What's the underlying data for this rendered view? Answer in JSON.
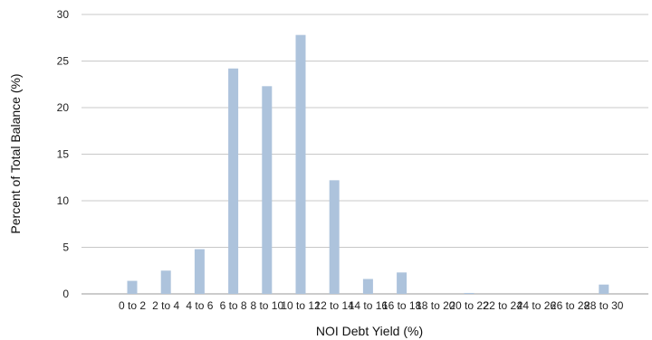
{
  "chart_data": {
    "type": "bar",
    "xlabel": "NOI Debt Yield (%)",
    "ylabel": "Percent of Total Balance (%)",
    "ylim": [
      0,
      30
    ],
    "yticks": [
      0,
      5,
      10,
      15,
      20,
      25,
      30
    ],
    "grid": true,
    "categories": [
      "0 to 2",
      "2 to 4",
      "4 to 6",
      "6 to 8",
      "8 to 10",
      "10 to 12",
      "12 to 14",
      "14 to 16",
      "16 to 18",
      "18 to 20",
      "20 to 22",
      "22 to 24",
      "24 to 26",
      "26 to 28",
      "28 to 30"
    ],
    "values": [
      1.4,
      2.5,
      4.8,
      24.2,
      22.3,
      27.8,
      12.2,
      1.6,
      2.3,
      0,
      0.1,
      0,
      0,
      0,
      1.0
    ]
  },
  "colors": {
    "bar": "#adc3dc",
    "grid": "#c8c8c8",
    "baseline": "#9a9a9a"
  }
}
